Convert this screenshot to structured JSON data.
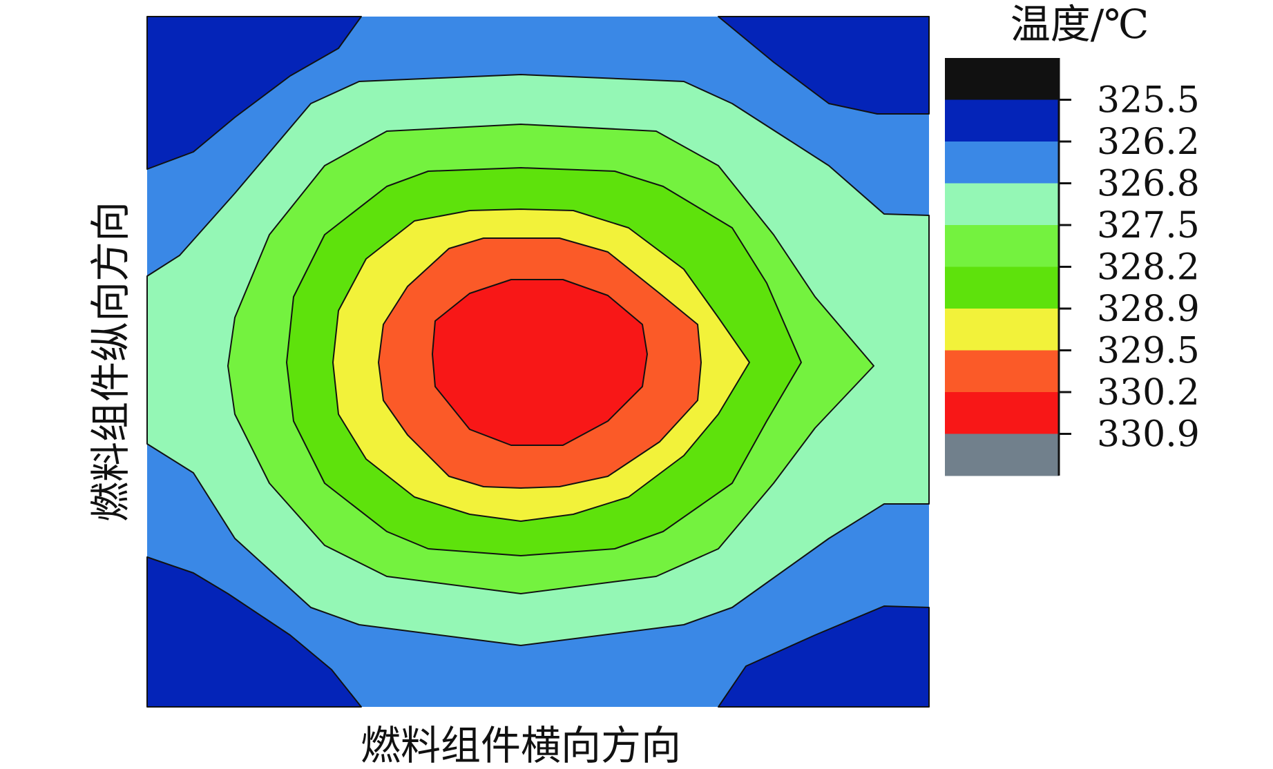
{
  "chart_data": {
    "type": "heatmap",
    "subtype": "filled-contour",
    "xlabel": "燃料组件横向方向",
    "ylabel": "燃料组件纵向方向",
    "colorbar": {
      "title": "温度/℃",
      "tick_labels": [
        "325.5",
        "326.2",
        "326.8",
        "327.5",
        "328.2",
        "328.9",
        "329.5",
        "330.2",
        "330.9"
      ],
      "levels": [
        325.5,
        326.2,
        326.8,
        327.5,
        328.2,
        328.9,
        329.5,
        330.2,
        330.9
      ],
      "band_colors": [
        "#111111",
        "#0424b8",
        "#3a88e6",
        "#94f7b5",
        "#74f23f",
        "#5ee20c",
        "#f2f23a",
        "#fb5a28",
        "#f81717",
        "#71808c"
      ]
    },
    "field": {
      "description_levels_inner_to_outer": [
        330.2,
        329.5,
        328.9,
        328.2,
        327.5,
        326.8,
        326.2
      ],
      "peak_location": "center-left",
      "corners": "326.2 (lowest)"
    },
    "grid": false,
    "legend_position": "right"
  }
}
